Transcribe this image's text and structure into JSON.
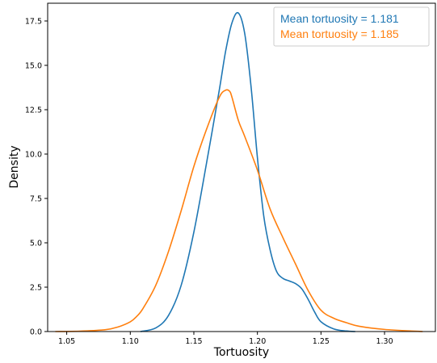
{
  "chart_data": {
    "type": "line",
    "xlabel": "Tortuosity",
    "ylabel": "Density",
    "xlim": [
      1.035,
      1.34
    ],
    "ylim": [
      0,
      18.5
    ],
    "x_ticks": [
      "1.05",
      "1.10",
      "1.15",
      "1.20",
      "1.25",
      "1.30"
    ],
    "x_tick_values": [
      1.05,
      1.1,
      1.15,
      1.2,
      1.25,
      1.3
    ],
    "y_ticks": [
      "0.0",
      "2.5",
      "5.0",
      "7.5",
      "10.0",
      "12.5",
      "15.0",
      "17.5"
    ],
    "y_tick_values": [
      0,
      2.5,
      5,
      7.5,
      10,
      12.5,
      15,
      17.5
    ],
    "grid": false,
    "legend_position": "top-right",
    "legend": [
      {
        "text": "Mean tortuosity = 1.181",
        "color": "#1f77b4"
      },
      {
        "text": "Mean tortuosity = 1.185",
        "color": "#ff7f0e"
      }
    ],
    "series": [
      {
        "color": "#1f77b4",
        "x": [
          1.108,
          1.12,
          1.13,
          1.14,
          1.15,
          1.16,
          1.17,
          1.175,
          1.18,
          1.185,
          1.19,
          1.195,
          1.2,
          1.205,
          1.21,
          1.215,
          1.22,
          1.225,
          1.23,
          1.235,
          1.24,
          1.245,
          1.25,
          1.26,
          1.27,
          1.277
        ],
        "y": [
          0.0,
          0.2,
          0.9,
          2.6,
          5.6,
          9.5,
          13.6,
          15.8,
          17.4,
          17.95,
          16.8,
          13.8,
          9.8,
          6.5,
          4.6,
          3.4,
          3.0,
          2.85,
          2.7,
          2.4,
          1.8,
          1.1,
          0.55,
          0.15,
          0.03,
          0.0
        ]
      },
      {
        "color": "#ff7f0e",
        "x": [
          1.041,
          1.06,
          1.08,
          1.09,
          1.1,
          1.105,
          1.11,
          1.12,
          1.13,
          1.14,
          1.15,
          1.16,
          1.17,
          1.175,
          1.178,
          1.18,
          1.185,
          1.19,
          1.2,
          1.21,
          1.22,
          1.23,
          1.24,
          1.25,
          1.26,
          1.27,
          1.28,
          1.3,
          1.33
        ],
        "y": [
          0.0,
          0.02,
          0.1,
          0.25,
          0.55,
          0.85,
          1.3,
          2.6,
          4.5,
          6.8,
          9.3,
          11.4,
          13.2,
          13.6,
          13.55,
          13.2,
          11.9,
          11.0,
          9.1,
          6.9,
          5.3,
          3.8,
          2.3,
          1.2,
          0.75,
          0.5,
          0.3,
          0.12,
          0.0
        ]
      }
    ]
  }
}
